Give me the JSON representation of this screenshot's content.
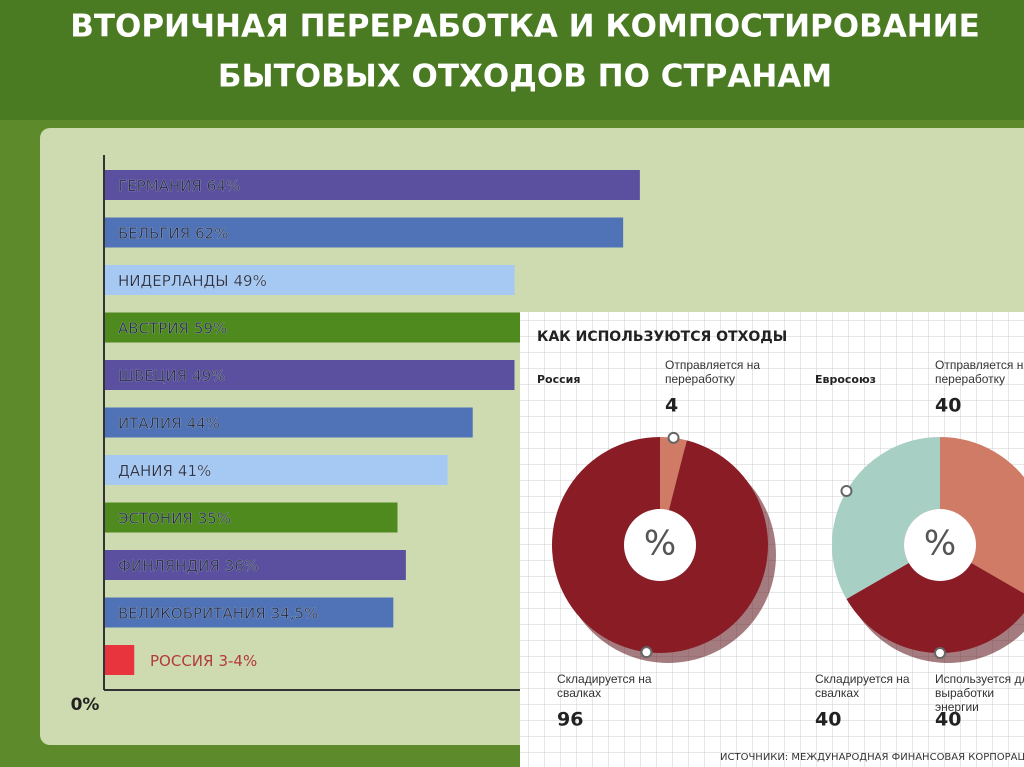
{
  "title_lines": [
    "ВТОРИЧНАЯ ПЕРЕРАБОТКА И КОМПОСТИРОВАНИЕ",
    "БЫТОВЫХ ОТХОДОВ ПО СТРАНАМ"
  ],
  "panel": {
    "title": "КАК ИСПОЛЬЗУЮТСЯ ОТХОДЫ",
    "source": "ИСТОЧНИКИ: МЕЖДУНАРОДНАЯ ФИНАНСОВАЯ КОРПОРАЦИЯ, МИ"
  },
  "chart_data": [
    {
      "type": "bar",
      "orientation": "horizontal",
      "categories": [
        "ГЕРМАНИЯ",
        "БЕЛЬГИЯ",
        "НИДЕРЛАНДЫ",
        "АВСТРИЯ",
        "ШВЕЦИЯ",
        "ИТАЛИЯ",
        "ДАНИЯ",
        "ЭСТОНИЯ",
        "ФИНЛЯНДИЯ",
        "ВЕЛИКОБРИТАНИЯ",
        "РОССИЯ"
      ],
      "values": [
        64,
        62,
        49,
        59,
        49,
        44,
        41,
        35,
        36,
        34.5,
        3.5
      ],
      "value_labels": [
        "64%",
        "62%",
        "49%",
        "59%",
        "49%",
        "44%",
        "41%",
        "35%",
        "36%",
        "34,5%",
        "3-4%"
      ],
      "colors": [
        "#5b4f9f",
        "#4f73b6",
        "#a5c9f2",
        "#4e8a1e",
        "#5b4f9f",
        "#4f73b6",
        "#a5c9f2",
        "#4e8a1e",
        "#5b4f9f",
        "#4f73b6",
        "#e8343d"
      ],
      "xlim": [
        0,
        70
      ],
      "xticks": [
        {
          "value": 0,
          "label": "0%"
        }
      ]
    },
    {
      "type": "pie",
      "title": "Россия",
      "center_label": "%",
      "categories": [
        "Отправляется на переработку",
        "Складируется на свалках"
      ],
      "values": [
        4,
        96
      ],
      "colors": [
        "#cf7b66",
        "#8a1c25"
      ]
    },
    {
      "type": "pie",
      "title": "Евросоюз",
      "center_label": "%",
      "categories": [
        "Отправляется на переработку",
        "Складируется на свалках",
        "Используется для выработки энергии"
      ],
      "values": [
        40,
        40,
        40
      ],
      "colors": [
        "#cf7b66",
        "#8a1c25",
        "#a8cfc3"
      ]
    }
  ]
}
